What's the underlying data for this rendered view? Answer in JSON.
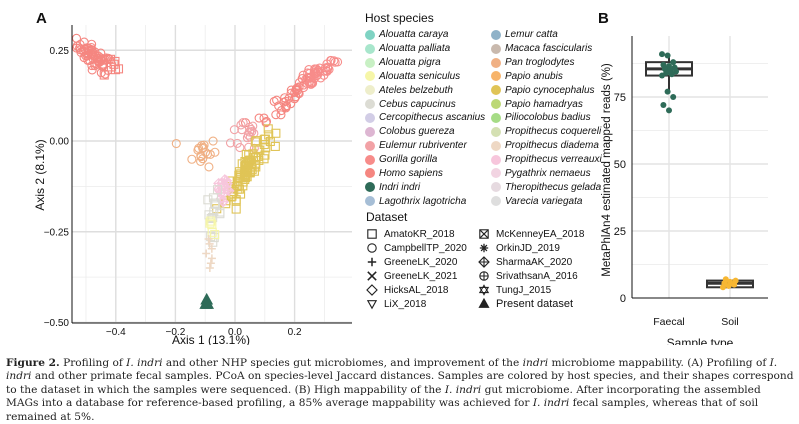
{
  "panels": {
    "a": "A",
    "b": "B"
  },
  "species": [
    {
      "name": "Alouatta caraya",
      "color": "#7fd3c3"
    },
    {
      "name": "Alouatta palliata",
      "color": "#a8e6cc"
    },
    {
      "name": "Alouatta pigra",
      "color": "#c8f0c4"
    },
    {
      "name": "Alouatta seniculus",
      "color": "#f6f6a8"
    },
    {
      "name": "Ateles belzebuth",
      "color": "#eeeecb"
    },
    {
      "name": "Cebus capucinus",
      "color": "#dcdcd4"
    },
    {
      "name": "Cercopithecus ascanius",
      "color": "#d2cde6"
    },
    {
      "name": "Colobus guereza",
      "color": "#ddb6d2"
    },
    {
      "name": "Eulemur rubriventer",
      "color": "#f2a2a6"
    },
    {
      "name": "Gorilla gorilla",
      "color": "#f78c8a"
    },
    {
      "name": "Homo sapiens",
      "color": "#f58680"
    },
    {
      "name": "Indri indri",
      "color": "#2e6b58"
    },
    {
      "name": "Lagothrix lagotricha",
      "color": "#a6bed6"
    },
    {
      "name": "Lemur catta",
      "color": "#8fb2c8"
    },
    {
      "name": "Macaca fascicularis",
      "color": "#c9b9ad"
    },
    {
      "name": "Pan troglodytes",
      "color": "#f0b084"
    },
    {
      "name": "Papio anubis",
      "color": "#f7b46a"
    },
    {
      "name": "Papio cynocephalus",
      "color": "#e0c456"
    },
    {
      "name": "Papio hamadryas",
      "color": "#bcd875"
    },
    {
      "name": "Piliocolobus badius",
      "color": "#a6dc86"
    },
    {
      "name": "Propithecus coquereli",
      "color": "#d4e0b2"
    },
    {
      "name": "Propithecus diadema",
      "color": "#eed8c4"
    },
    {
      "name": "Propithecus verreauxi",
      "color": "#f7c6dc"
    },
    {
      "name": "Pygathrix nemaeus",
      "color": "#f2d4e2"
    },
    {
      "name": "Theropithecus gelada",
      "color": "#e6dae0"
    },
    {
      "name": "Varecia variegata",
      "color": "#dedede"
    }
  ],
  "datasets": [
    {
      "name": "AmatoKR_2018",
      "shape": "square"
    },
    {
      "name": "CampbellTP_2020",
      "shape": "circle"
    },
    {
      "name": "GreeneLK_2020",
      "shape": "plus"
    },
    {
      "name": "GreeneLK_2021",
      "shape": "cross"
    },
    {
      "name": "HicksAL_2018",
      "shape": "diamond"
    },
    {
      "name": "LiX_2018",
      "shape": "triangle-down"
    },
    {
      "name": "McKenneyEA_2018",
      "shape": "square-x"
    },
    {
      "name": "OrkinJD_2019",
      "shape": "asterisk"
    },
    {
      "name": "SharmaAK_2020",
      "shape": "diamond-plus"
    },
    {
      "name": "SrivathsanA_2016",
      "shape": "circle-plus"
    },
    {
      "name": "TungJ_2015",
      "shape": "star-of-david"
    },
    {
      "name": "Present dataset",
      "shape": "triangle-filled"
    }
  ],
  "legend": {
    "species_title": "Host species",
    "dataset_title": "Dataset"
  },
  "chart_data": [
    {
      "type": "scatter",
      "title": "",
      "xlabel": "Axis 1 (13.1%)",
      "ylabel": "Axis 2 (8.1%)",
      "xlim": [
        -0.56,
        0.38
      ],
      "ylim": [
        -0.5,
        0.32
      ],
      "xticks": [
        -0.4,
        -0.2,
        0.0,
        0.2
      ],
      "xtick_labels": [
        "−0.4",
        "−0.2",
        "0.0",
        "0.2"
      ],
      "yticks": [
        0.25,
        0.0,
        -0.25,
        -0.5
      ],
      "ytick_labels": [
        "0.25",
        "0.00",
        "−0.25",
        "−0.50"
      ],
      "grid": true,
      "clusters": [
        {
          "species": "Homo sapiens",
          "dataset": "CampbellTP_2020",
          "center": [
            -0.47,
            0.23
          ],
          "spread": [
            0.03,
            0.025
          ],
          "n": 60
        },
        {
          "species": "Homo sapiens",
          "dataset": "AmatoKR_2018",
          "center": [
            -0.42,
            0.2
          ],
          "spread": [
            0.02,
            0.015
          ],
          "n": 8
        },
        {
          "species": "Gorilla gorilla",
          "dataset": "CampbellTP_2020",
          "center": [
            0.27,
            0.18
          ],
          "spread": [
            0.035,
            0.02
          ],
          "n": 50
        },
        {
          "species": "Homo sapiens",
          "dataset": "CampbellTP_2020",
          "center": [
            0.15,
            0.1
          ],
          "spread": [
            0.05,
            0.03
          ],
          "n": 30
        },
        {
          "species": "Eulemur rubriventer",
          "dataset": "CampbellTP_2020",
          "center": [
            0.05,
            0.02
          ],
          "spread": [
            0.03,
            0.03
          ],
          "n": 18
        },
        {
          "species": "Pan troglodytes",
          "dataset": "CampbellTP_2020",
          "center": [
            -0.11,
            -0.03
          ],
          "spread": [
            0.025,
            0.02
          ],
          "n": 18
        },
        {
          "species": "Papio cynocephalus",
          "dataset": "AmatoKR_2018",
          "center": [
            0.04,
            -0.08
          ],
          "spread": [
            0.035,
            0.04
          ],
          "n": 80
        },
        {
          "species": "Propithecus verreauxi",
          "dataset": "SharmaAK_2020",
          "center": [
            -0.04,
            -0.13
          ],
          "spread": [
            0.015,
            0.03
          ],
          "n": 15
        },
        {
          "species": "Cebus capucinus",
          "dataset": "AmatoKR_2018",
          "center": [
            -0.07,
            -0.2
          ],
          "spread": [
            0.012,
            0.03
          ],
          "n": 14
        },
        {
          "species": "Alouatta seniculus",
          "dataset": "AmatoKR_2018",
          "center": [
            -0.075,
            -0.24
          ],
          "spread": [
            0.01,
            0.01
          ],
          "n": 5
        },
        {
          "species": "Propithecus diadema",
          "dataset": "GreeneLK_2020",
          "center": [
            -0.085,
            -0.31
          ],
          "spread": [
            0.008,
            0.04
          ],
          "n": 7
        },
        {
          "species": "Indri indri",
          "dataset": "Present dataset",
          "center": [
            -0.095,
            -0.45
          ],
          "spread": [
            0.004,
            0.01
          ],
          "n": 3
        }
      ]
    },
    {
      "type": "box",
      "title": "",
      "xlabel": "Sample type",
      "ylabel": "MetaPhlAn4 estimated mapped reads (%)",
      "categories": [
        "Faecal",
        "Soil"
      ],
      "ylim": [
        0,
        97
      ],
      "yticks": [
        0,
        25,
        50,
        75
      ],
      "grid": true,
      "boxes": [
        {
          "category": "Faecal",
          "min": 77,
          "q1": 83,
          "median": 85.5,
          "q3": 88,
          "max": 91,
          "color": "#2e6b58",
          "points": [
            91,
            90.5,
            88,
            87,
            86.5,
            86,
            85.5,
            85,
            84.5,
            84,
            83.5,
            83,
            77,
            75,
            72,
            70
          ]
        },
        {
          "category": "Soil",
          "min": 4,
          "q1": 4,
          "median": 5.5,
          "q3": 6.5,
          "max": 7,
          "color": "#f7b733",
          "points": [
            4,
            4.5,
            5,
            5.5,
            6,
            6.5,
            7
          ]
        }
      ]
    }
  ],
  "caption": {
    "label": "Figure 2.",
    "part1": " Profiling of ",
    "sp1": "I. indri",
    "part2": " and other NHP species gut microbiomes, and improvement of the ",
    "sp2": "indri",
    "part3": " microbiome mappability. (A) Profiling of ",
    "sp3": "I. indri",
    "part4": " and other primate fecal samples. PCoA on species-level Jaccard distances. Samples are colored by host species, and their shapes correspond to the dataset in which the samples were sequenced. (B) High mappability of the ",
    "sp4": "I. indri",
    "part5": " gut microbiome. After incorporating the assembled MAGs into a database for reference-based profiling, a 85% average mappability was achieved for ",
    "sp5": "I. indri",
    "part6": " fecal samples, whereas that of soil remained at 5%."
  }
}
